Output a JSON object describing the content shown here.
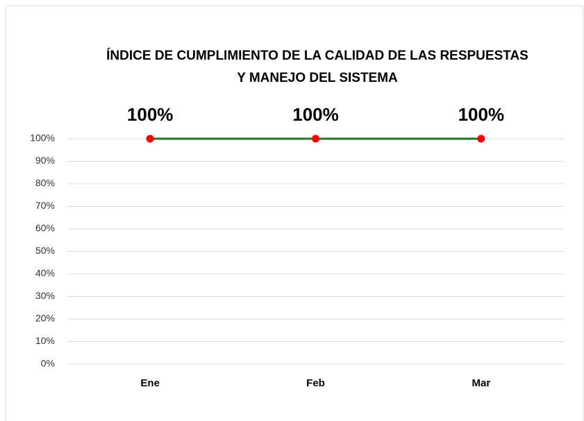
{
  "chart_data": {
    "type": "line",
    "title": [
      "ÍNDICE DE CUMPLIMIENTO DE LA CALIDAD DE LAS RESPUESTAS",
      "Y MANEJO DEL SISTEMA"
    ],
    "categories": [
      "Ene",
      "Feb",
      "Mar"
    ],
    "values": [
      100,
      100,
      100
    ],
    "value_labels": [
      "100%",
      "100%",
      "100%"
    ],
    "color": "#1a7a1a",
    "marker_color": "#ff0000",
    "ylim": [
      0,
      100
    ],
    "yticks": [
      {
        "value": 0,
        "label": "0%"
      },
      {
        "value": 10,
        "label": "10%"
      },
      {
        "value": 20,
        "label": "20%"
      },
      {
        "value": 30,
        "label": "30%"
      },
      {
        "value": 40,
        "label": "40%"
      },
      {
        "value": 50,
        "label": "50%"
      },
      {
        "value": 60,
        "label": "60%"
      },
      {
        "value": 70,
        "label": "70%"
      },
      {
        "value": 80,
        "label": "80%"
      },
      {
        "value": 90,
        "label": "90%"
      },
      {
        "value": 100,
        "label": "100%"
      }
    ],
    "grid": true
  }
}
